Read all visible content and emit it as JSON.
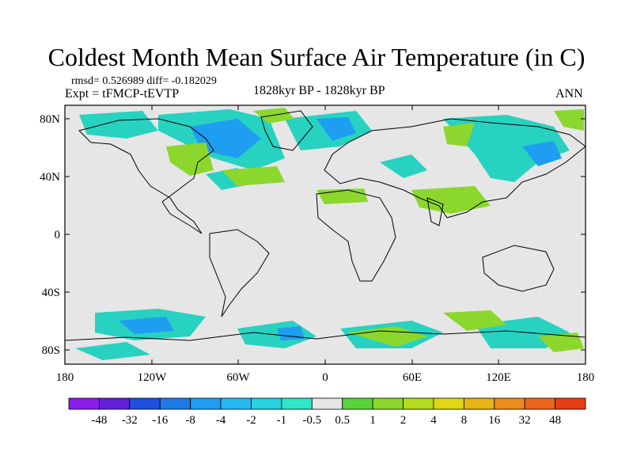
{
  "title": "Coldest Month Mean Surface Air Temperature (in C)",
  "stats": "rmsd= 0.526989 diff= -0.182029",
  "experiment": "Expt = tFMCP-tEVTP",
  "period": "1828kyr BP - 1828kyr BP",
  "season": "ANN",
  "y_ticks": [
    "80N",
    "40N",
    "0",
    "40S",
    "80S"
  ],
  "x_ticks": [
    "180",
    "120W",
    "60W",
    "0",
    "60E",
    "120E",
    "180"
  ],
  "colorbar": {
    "colors": [
      "#8a1ee8",
      "#6020d8",
      "#1e50dc",
      "#1e78e6",
      "#1e9ef0",
      "#28b8f0",
      "#28d2e0",
      "#30e6c8",
      "#e6e6e6",
      "#5ad23c",
      "#8cd72d",
      "#b4dc1e",
      "#e0d614",
      "#e6b414",
      "#eb8c1e",
      "#eb641e",
      "#e63c14"
    ],
    "labels": [
      "-48",
      "-32",
      "-16",
      "-8",
      "-4",
      "-2",
      "-1",
      "-0.5",
      "0.5",
      "1",
      "2",
      "4",
      "8",
      "16",
      "32",
      "48"
    ]
  },
  "palette": {
    "neutral": "#e6e6e6",
    "cool": "#28d2c0",
    "cooler": "#1e9ef0",
    "warm": "#8cd72d"
  }
}
